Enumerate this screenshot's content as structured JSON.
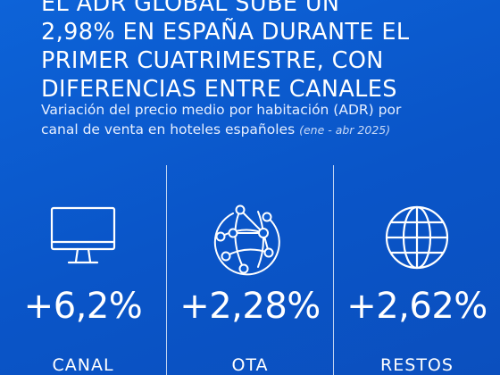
{
  "headline": {
    "lines": [
      "EL ADR GLOBAL SUBE UN",
      "2,98% EN ESPAÑA DURANTE EL",
      "PRIMER CUATRIMESTRE, CON",
      "DIFERENCIAS ENTRE CANALES"
    ]
  },
  "subtitle": {
    "line1": "Variación del precio medio por habitación (ADR) por",
    "line2": "canal de venta en hoteles españoles",
    "period": "(ene - abr 2025)"
  },
  "channels": [
    {
      "value": "+6,2%",
      "label": "CANAL",
      "icon": "desktop-monitor-icon"
    },
    {
      "value": "+2,28%",
      "label": "OTA",
      "icon": "network-globe-icon"
    },
    {
      "value": "+2,62%",
      "label": "RESTOS",
      "icon": "globe-icon"
    }
  ],
  "colors": {
    "background": "#0b5bd0",
    "text": "#ffffff"
  }
}
